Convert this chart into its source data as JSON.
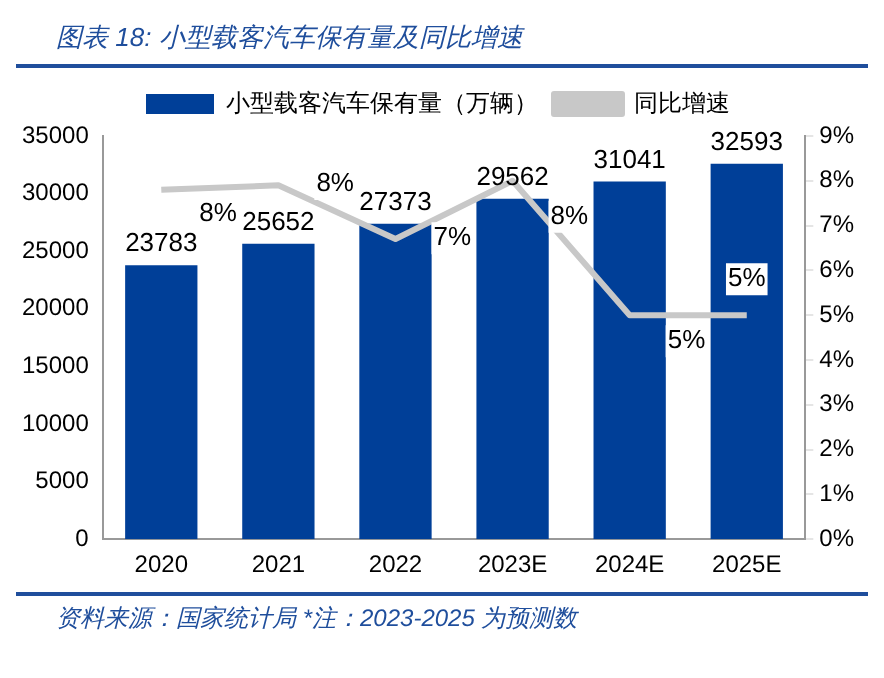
{
  "chart_data": {
    "type": "bar",
    "title": "图表 18:  小型载客汽车保有量及同比增速",
    "categories": [
      "2020",
      "2021",
      "2022",
      "2023E",
      "2024E",
      "2025E"
    ],
    "series": [
      {
        "name": "小型载客汽车保有量（万辆）",
        "color": "#003f98",
        "values": [
          23783,
          25652,
          27373,
          29562,
          31041,
          32593
        ],
        "value_labels": [
          "23783",
          "25652",
          "27373",
          "29562",
          "31041",
          "32593"
        ]
      },
      {
        "name": "同比增速",
        "type": "line",
        "axis": "y2",
        "color": "#c8c8c8",
        "values": [
          7.8,
          7.9,
          6.7,
          8.0,
          5.0,
          5.0
        ],
        "value_labels": [
          "8%",
          "8%",
          "7%",
          "8%",
          "5%",
          "5%"
        ]
      }
    ],
    "ylim": [
      0,
      35000
    ],
    "yticks": [
      0,
      5000,
      10000,
      15000,
      20000,
      25000,
      30000,
      35000
    ],
    "y2lim": [
      0,
      9
    ],
    "y2ticks": [
      {
        "value": 0,
        "label": "0%"
      },
      {
        "value": 1,
        "label": "1%"
      },
      {
        "value": 2,
        "label": "2%"
      },
      {
        "value": 3,
        "label": "3%"
      },
      {
        "value": 4,
        "label": "4%"
      },
      {
        "value": 5,
        "label": "5%"
      },
      {
        "value": 6,
        "label": "6%"
      },
      {
        "value": 7,
        "label": "7%"
      },
      {
        "value": 8,
        "label": "8%"
      },
      {
        "value": 9,
        "label": "9%"
      }
    ],
    "legend": "top",
    "grid": false,
    "marker": "none",
    "annotations": [
      "资料来源：国家统计局 *注：2023-2025 为预测数"
    ]
  }
}
